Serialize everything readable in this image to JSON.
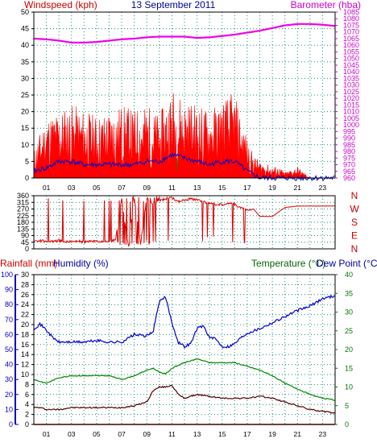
{
  "header": {
    "left_title": "Windspeed (kph)",
    "center_title": "13 September 2011",
    "right_title": "Barometer (hba)"
  },
  "bottom_header": {
    "rainfall": "Rainfall (mm)",
    "humidity": "Humidity (%)",
    "temperature": "Temperature (°C)",
    "dewpoint": "Dew Point (°C)"
  },
  "colors": {
    "frame": "#000000",
    "grid": "#1a8a7a",
    "wind_gust": "#ff0000",
    "wind_avg": "#0000cc",
    "wind_low": "#008800",
    "barometer": "#ee00ee",
    "direction": "#dd0000",
    "humidity": "#0000cc",
    "temperature": "#008800",
    "dewpoint": "#550000",
    "rainfall": "#cc0000",
    "title_red": "#cc0000",
    "title_blue": "#000099",
    "title_green": "#006600",
    "title_magenta": "#cc00cc",
    "axis_blue": "#0000bb",
    "axis_magenta": "#cc00cc",
    "axis_green": "#007700"
  },
  "chart_data": [
    {
      "id": "wind_barometer",
      "type": "line",
      "title": "13 September 2011",
      "xlabel": "",
      "x_ticks": [
        "01",
        "03",
        "05",
        "07",
        "09",
        "11",
        "13",
        "15",
        "17",
        "19",
        "21",
        "23"
      ],
      "x_range_hours": [
        0,
        24
      ],
      "left_axis": {
        "label": "Windspeed (kph)",
        "range": [
          0,
          50
        ],
        "ticks": [
          0,
          5,
          10,
          15,
          20,
          25,
          30,
          35,
          40,
          45,
          50
        ]
      },
      "right_axis": {
        "label": "Barometer (hba)",
        "range": [
          960,
          1085
        ],
        "ticks": [
          960,
          965,
          970,
          975,
          980,
          985,
          990,
          995,
          1000,
          1005,
          1010,
          1015,
          1020,
          1025,
          1030,
          1035,
          1040,
          1045,
          1050,
          1055,
          1060,
          1065,
          1070,
          1075,
          1080,
          1085
        ]
      },
      "grid": true,
      "series": [
        {
          "name": "Windspeed",
          "style": "spiky-fill",
          "color": "wind_gust",
          "axis": "left",
          "x": [
            0,
            1,
            2,
            3,
            4,
            5,
            6,
            7,
            8,
            9,
            10,
            11,
            12,
            13,
            14,
            15,
            16,
            17,
            17.5,
            18,
            19,
            19.5,
            20,
            21,
            22,
            23,
            24
          ],
          "y": [
            5,
            11,
            12,
            13,
            12,
            11,
            12,
            13,
            12,
            13,
            11,
            16,
            14,
            13,
            12,
            14,
            15,
            7,
            4,
            3,
            2,
            2,
            1,
            2,
            0,
            0,
            0
          ]
        },
        {
          "name": "Average",
          "style": "line",
          "color": "wind_avg",
          "axis": "left",
          "x": [
            0,
            1,
            2,
            3,
            4,
            5,
            6,
            7,
            8,
            9,
            10,
            11,
            12,
            13,
            14,
            15,
            16,
            17,
            17.5,
            18,
            19,
            20,
            21,
            22,
            23,
            24
          ],
          "y": [
            2,
            3,
            5,
            5,
            4,
            4,
            4,
            4,
            4,
            5,
            5,
            7,
            6,
            5,
            4,
            5,
            5,
            2,
            1,
            0,
            0,
            0,
            0,
            0,
            0,
            0
          ]
        },
        {
          "name": "Low",
          "style": "spiky-fill",
          "color": "wind_low",
          "axis": "left",
          "x": [
            0,
            1,
            2,
            3,
            4,
            5,
            6,
            7,
            8,
            9,
            10,
            11,
            12,
            13,
            14,
            15,
            16,
            17,
            17.5,
            18,
            19,
            20,
            24
          ],
          "y": [
            1,
            3,
            4,
            4,
            3,
            3,
            3,
            3,
            3,
            3,
            3,
            5,
            4,
            3,
            3,
            4,
            4,
            1,
            0,
            0,
            0,
            0,
            0
          ]
        },
        {
          "name": "Barometer",
          "style": "line",
          "color": "barometer",
          "axis": "right",
          "x": [
            0,
            1,
            2,
            3,
            4,
            5,
            6,
            7,
            8,
            9,
            10,
            11,
            12,
            13,
            14,
            15,
            16,
            17,
            18,
            19,
            20,
            21,
            22,
            23,
            24
          ],
          "y": [
            1065,
            1064.5,
            1063.5,
            1062,
            1062,
            1062.5,
            1063.5,
            1064.5,
            1065,
            1066,
            1066.5,
            1066.5,
            1066.5,
            1065.5,
            1066,
            1067,
            1068,
            1069.5,
            1071,
            1073,
            1075,
            1076,
            1076,
            1075.5,
            1074.5
          ]
        }
      ]
    },
    {
      "id": "wind_direction",
      "type": "scatter",
      "x_range_hours": [
        0,
        24
      ],
      "left_axis": {
        "label": "",
        "range": [
          0,
          360
        ],
        "ticks": [
          0,
          45,
          90,
          135,
          180,
          225,
          270,
          315,
          360
        ]
      },
      "compass_labels": [
        "N",
        "W",
        "S",
        "E",
        "N"
      ],
      "grid": true,
      "series": [
        {
          "name": "Direction",
          "color": "direction",
          "x": [
            0,
            0.5,
            1,
            1.5,
            2,
            2.5,
            3,
            3.5,
            4,
            4.5,
            5,
            5.5,
            6,
            6.5,
            7,
            7.5,
            8,
            8.5,
            9,
            9.5,
            10,
            10.5,
            11,
            11.5,
            12,
            12.5,
            13,
            13.5,
            14,
            14.5,
            15,
            15.5,
            16,
            16.5,
            17,
            17.5,
            18,
            18.5,
            19,
            19.5,
            20,
            21,
            22,
            23,
            24
          ],
          "y": [
            55,
            55,
            50,
            50,
            55,
            50,
            50,
            55,
            45,
            50,
            55,
            45,
            50,
            60,
            340,
            30,
            345,
            30,
            350,
            300,
            330,
            340,
            350,
            320,
            330,
            340,
            330,
            320,
            310,
            300,
            300,
            310,
            300,
            280,
            260,
            270,
            220,
            220,
            220,
            250,
            280,
            290,
            290,
            290,
            290
          ]
        }
      ]
    },
    {
      "id": "temp_humidity_rain",
      "type": "line",
      "x_ticks": [
        "01",
        "03",
        "05",
        "07",
        "09",
        "11",
        "13",
        "15",
        "17",
        "19",
        "21",
        "23"
      ],
      "x_range_hours": [
        0,
        24
      ],
      "humidity_axis": {
        "label": "Humidity (%)",
        "range": [
          0,
          100
        ],
        "ticks": [
          0,
          10,
          20,
          30,
          40,
          50,
          60,
          70,
          80,
          90,
          100
        ]
      },
      "rainfall_axis": {
        "label": "Rainfall (mm)",
        "range": [
          0,
          30
        ],
        "ticks": [
          0,
          2,
          4,
          6,
          8,
          10,
          12,
          14,
          16,
          18,
          20,
          22,
          24,
          26,
          28,
          30
        ]
      },
      "temperature_axis": {
        "label": "Temperature (°C)",
        "range": [
          0,
          40
        ],
        "ticks": [
          0,
          5,
          10,
          15,
          20,
          25,
          30,
          35,
          40
        ]
      },
      "grid": true,
      "series": [
        {
          "name": "Humidity (%)",
          "color": "humidity",
          "axis": "humidity",
          "x": [
            0,
            0.5,
            1,
            1.5,
            2,
            3,
            4,
            5,
            6,
            7,
            8,
            9,
            9.5,
            10,
            10.5,
            11,
            11.5,
            12,
            12.5,
            13,
            13.5,
            14,
            14.5,
            15,
            15.5,
            16,
            16.5,
            17,
            18,
            19,
            20,
            21,
            22,
            23,
            24
          ],
          "y": [
            64,
            67,
            63,
            58,
            55,
            55,
            55,
            56,
            55,
            55,
            60,
            59,
            62,
            82,
            85,
            68,
            55,
            52,
            54,
            64,
            66,
            58,
            57,
            52,
            52,
            54,
            58,
            61,
            64,
            68,
            72,
            76,
            79,
            84,
            86
          ]
        },
        {
          "name": "Temperature (°C)",
          "color": "temperature",
          "axis": "temperature",
          "x": [
            0,
            0.5,
            1,
            2,
            3,
            4,
            5,
            6,
            7,
            8,
            9,
            9.5,
            10,
            10.5,
            11,
            12,
            12.5,
            13,
            14,
            15,
            16,
            17,
            18,
            19,
            20,
            21,
            22,
            23,
            24
          ],
          "y": [
            12,
            11.5,
            11,
            12.5,
            13,
            13,
            13,
            13,
            12,
            13,
            14.5,
            15,
            14,
            13.5,
            15,
            16.5,
            17,
            17.5,
            16.5,
            16.5,
            16.5,
            15.5,
            14.5,
            13,
            11,
            9.5,
            8,
            7,
            6.5
          ]
        },
        {
          "name": "Dew Point (°C)",
          "color": "dewpoint",
          "axis": "temperature",
          "x": [
            0,
            0.5,
            1,
            2,
            3,
            4,
            5,
            6,
            7,
            8,
            9,
            9.5,
            10,
            10.5,
            11,
            11.5,
            12,
            13,
            14,
            15,
            16,
            17,
            18,
            19,
            20,
            21,
            22,
            23,
            24
          ],
          "y": [
            4.5,
            4.5,
            4,
            4,
            4.5,
            4.5,
            4.5,
            4.5,
            4.5,
            5,
            6,
            9,
            10,
            10,
            10.5,
            8,
            7,
            8,
            7.5,
            7,
            7,
            7,
            7.5,
            7,
            6,
            5,
            4,
            3.5,
            3
          ]
        },
        {
          "name": "Rainfall (mm)",
          "color": "rainfall",
          "axis": "rainfall",
          "x": [
            0,
            24
          ],
          "y": [
            0,
            0
          ]
        }
      ]
    }
  ]
}
